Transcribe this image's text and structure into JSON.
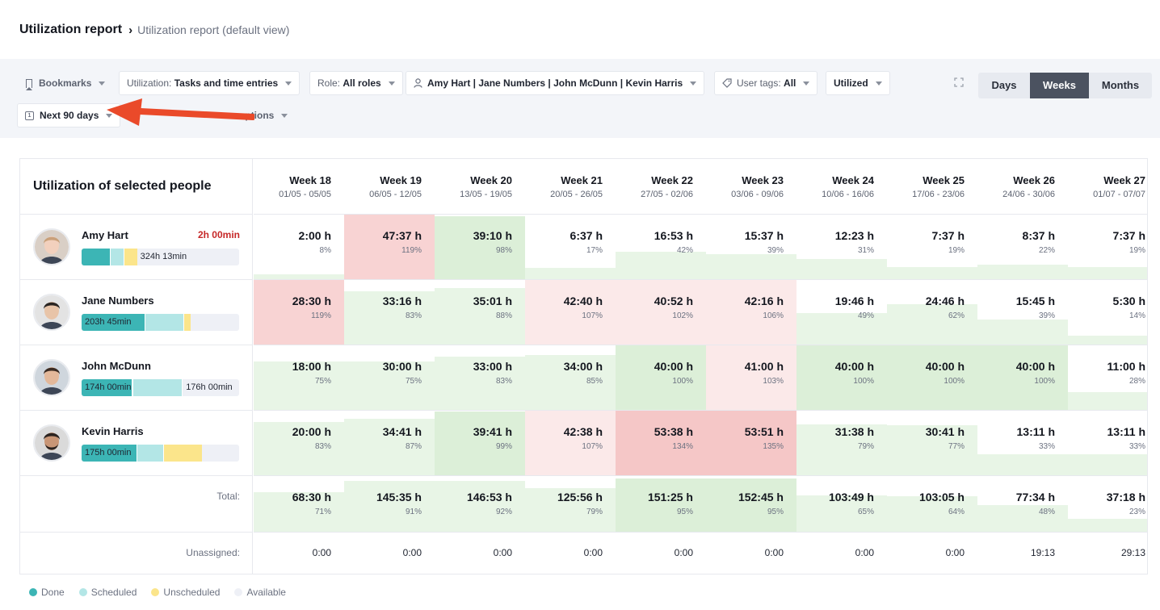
{
  "breadcrumb": {
    "title": "Utilization report",
    "separator": "›",
    "subtitle": "Utilization report (default view)"
  },
  "filters": {
    "bookmarks": "Bookmarks",
    "utilization_label": "Utilization:",
    "utilization_value": "Tasks and time entries",
    "role_label": "Role:",
    "role_value": "All roles",
    "people_value": "Amy Hart | Jane Numbers | John McDunn | Kevin Harris",
    "tags_label": "User tags:",
    "tags_value": "All",
    "utilized": "Utilized",
    "date_range": "Next 90 days",
    "options_partial": "options",
    "calendar_glyph": "1"
  },
  "view_toggle": {
    "options": [
      "Days",
      "Weeks",
      "Months"
    ],
    "selected": "Weeks"
  },
  "table": {
    "title": "Utilization of selected people",
    "weeks": [
      {
        "name": "Week 18",
        "dates": "01/05 - 05/05"
      },
      {
        "name": "Week 19",
        "dates": "06/05 - 12/05"
      },
      {
        "name": "Week 20",
        "dates": "13/05 - 19/05"
      },
      {
        "name": "Week 21",
        "dates": "20/05 - 26/05"
      },
      {
        "name": "Week 22",
        "dates": "27/05 - 02/06"
      },
      {
        "name": "Week 23",
        "dates": "03/06 - 09/06"
      },
      {
        "name": "Week 24",
        "dates": "10/06 - 16/06"
      },
      {
        "name": "Week 25",
        "dates": "17/06 - 23/06"
      },
      {
        "name": "Week 26",
        "dates": "24/06 - 30/06"
      },
      {
        "name": "Week 27",
        "dates": "01/07 - 07/07"
      }
    ],
    "people": [
      {
        "name": "Amy Hart",
        "over": "2h 00min",
        "bar_label": "",
        "bar_after": "324h 13min",
        "bar": {
          "done": 0.18,
          "sched": 0.08,
          "unsch": 0.08
        },
        "cells": [
          {
            "hrs": "2:00 h",
            "pct": "8%",
            "v": 8
          },
          {
            "hrs": "47:37 h",
            "pct": "119%",
            "v": 119
          },
          {
            "hrs": "39:10 h",
            "pct": "98%",
            "v": 98
          },
          {
            "hrs": "6:37 h",
            "pct": "17%",
            "v": 17
          },
          {
            "hrs": "16:53 h",
            "pct": "42%",
            "v": 42
          },
          {
            "hrs": "15:37 h",
            "pct": "39%",
            "v": 39
          },
          {
            "hrs": "12:23 h",
            "pct": "31%",
            "v": 31
          },
          {
            "hrs": "7:37 h",
            "pct": "19%",
            "v": 19
          },
          {
            "hrs": "8:37 h",
            "pct": "22%",
            "v": 22
          },
          {
            "hrs": "7:37 h",
            "pct": "19%",
            "v": 19
          }
        ]
      },
      {
        "name": "Jane Numbers",
        "over": "",
        "bar_label": "203h 45min",
        "bar_after": "",
        "bar": {
          "done": 0.4,
          "sched": 0.24,
          "unsch": 0.04
        },
        "cells": [
          {
            "hrs": "28:30 h",
            "pct": "119%",
            "v": 119
          },
          {
            "hrs": "33:16 h",
            "pct": "83%",
            "v": 83
          },
          {
            "hrs": "35:01 h",
            "pct": "88%",
            "v": 88
          },
          {
            "hrs": "42:40 h",
            "pct": "107%",
            "v": 107
          },
          {
            "hrs": "40:52 h",
            "pct": "102%",
            "v": 102
          },
          {
            "hrs": "42:16 h",
            "pct": "106%",
            "v": 106
          },
          {
            "hrs": "19:46 h",
            "pct": "49%",
            "v": 49
          },
          {
            "hrs": "24:46 h",
            "pct": "62%",
            "v": 62
          },
          {
            "hrs": "15:45 h",
            "pct": "39%",
            "v": 39
          },
          {
            "hrs": "5:30 h",
            "pct": "14%",
            "v": 14
          }
        ]
      },
      {
        "name": "John McDunn",
        "over": "",
        "bar_label": "174h 00min",
        "bar_after": "176h 00min",
        "bar": {
          "done": 0.32,
          "sched": 0.31,
          "unsch": 0
        },
        "cells": [
          {
            "hrs": "18:00 h",
            "pct": "75%",
            "v": 75
          },
          {
            "hrs": "30:00 h",
            "pct": "75%",
            "v": 75
          },
          {
            "hrs": "33:00 h",
            "pct": "83%",
            "v": 83
          },
          {
            "hrs": "34:00 h",
            "pct": "85%",
            "v": 85
          },
          {
            "hrs": "40:00 h",
            "pct": "100%",
            "v": 100
          },
          {
            "hrs": "41:00 h",
            "pct": "103%",
            "v": 103
          },
          {
            "hrs": "40:00 h",
            "pct": "100%",
            "v": 100
          },
          {
            "hrs": "40:00 h",
            "pct": "100%",
            "v": 100
          },
          {
            "hrs": "40:00 h",
            "pct": "100%",
            "v": 100
          },
          {
            "hrs": "11:00 h",
            "pct": "28%",
            "v": 28
          }
        ]
      },
      {
        "name": "Kevin Harris",
        "over": "",
        "bar_label": "175h 00min",
        "bar_after": "",
        "bar": {
          "done": 0.35,
          "sched": 0.16,
          "unsch": 0.24
        },
        "cells": [
          {
            "hrs": "20:00 h",
            "pct": "83%",
            "v": 83
          },
          {
            "hrs": "34:41 h",
            "pct": "87%",
            "v": 87
          },
          {
            "hrs": "39:41 h",
            "pct": "99%",
            "v": 99
          },
          {
            "hrs": "42:38 h",
            "pct": "107%",
            "v": 107
          },
          {
            "hrs": "53:38 h",
            "pct": "134%",
            "v": 134
          },
          {
            "hrs": "53:51 h",
            "pct": "135%",
            "v": 135
          },
          {
            "hrs": "31:38 h",
            "pct": "79%",
            "v": 79
          },
          {
            "hrs": "30:41 h",
            "pct": "77%",
            "v": 77
          },
          {
            "hrs": "13:11 h",
            "pct": "33%",
            "v": 33
          },
          {
            "hrs": "13:11 h",
            "pct": "33%",
            "v": 33
          }
        ]
      }
    ],
    "total_label": "Total:",
    "totals": [
      {
        "hrs": "68:30 h",
        "pct": "71%",
        "v": 71
      },
      {
        "hrs": "145:35 h",
        "pct": "91%",
        "v": 91
      },
      {
        "hrs": "146:53 h",
        "pct": "92%",
        "v": 92
      },
      {
        "hrs": "125:56 h",
        "pct": "79%",
        "v": 79
      },
      {
        "hrs": "151:25 h",
        "pct": "95%",
        "v": 95
      },
      {
        "hrs": "152:45 h",
        "pct": "95%",
        "v": 95
      },
      {
        "hrs": "103:49 h",
        "pct": "65%",
        "v": 65
      },
      {
        "hrs": "103:05 h",
        "pct": "64%",
        "v": 64
      },
      {
        "hrs": "77:34 h",
        "pct": "48%",
        "v": 48
      },
      {
        "hrs": "37:18 h",
        "pct": "23%",
        "v": 23
      }
    ],
    "unassigned_label": "Unassigned:",
    "unassigned": [
      "0:00",
      "0:00",
      "0:00",
      "0:00",
      "0:00",
      "0:00",
      "0:00",
      "0:00",
      "19:13",
      "29:13"
    ]
  },
  "legend": [
    {
      "label": "Done",
      "color": "#3cb5b5"
    },
    {
      "label": "Scheduled",
      "color": "#b3e6e6"
    },
    {
      "label": "Unscheduled",
      "color": "#fbe58b"
    },
    {
      "label": "Available",
      "color": "#eef0f6"
    }
  ],
  "colors": {
    "fill_normal": "#e8f5e6",
    "fill_normal_strong": "#dcefd8",
    "fill_over_light": "#fbe9e9",
    "fill_over": "#f8d3d3",
    "fill_over_strong": "#f5c7c7",
    "arrow": "#ea4a2a"
  }
}
